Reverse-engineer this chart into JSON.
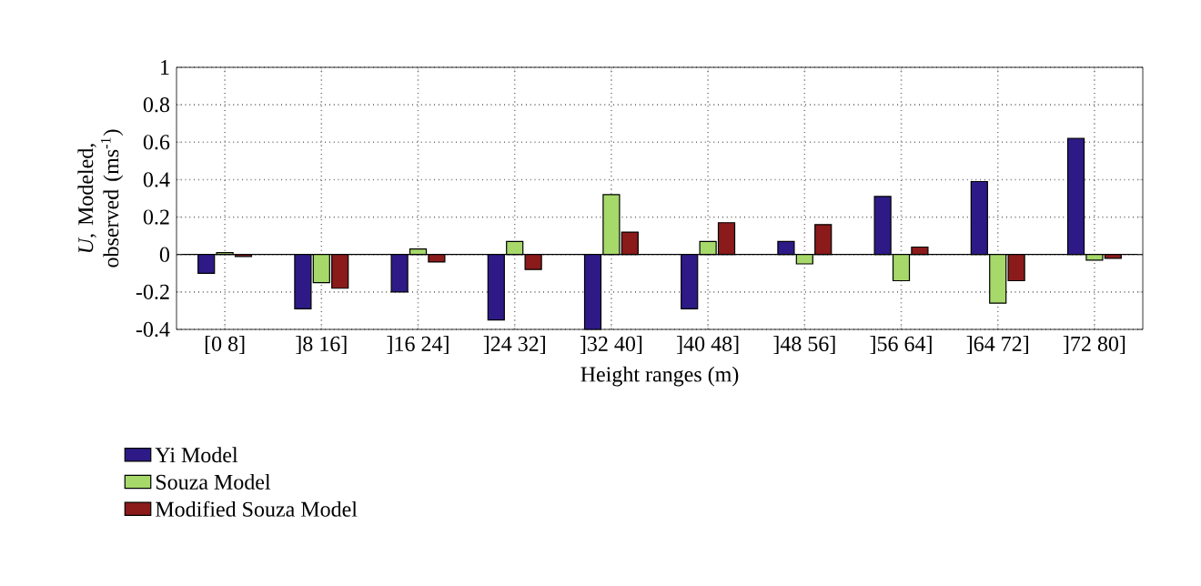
{
  "chart_data": {
    "type": "bar",
    "xlabel": "Height ranges (m)",
    "ylabel": "*U*, Modeled, observed (ms$^{-1}$)",
    "categories": [
      "[0 8]",
      "]8 16]",
      "]16 24]",
      "]24 32]",
      "]32 40]",
      "]40 48]",
      "]48 56]",
      "]56 64]",
      "]64 72]",
      "]72 80]"
    ],
    "series": [
      {
        "name": "Yi Model",
        "color": "#2e1a87",
        "values": [
          -0.1,
          -0.29,
          -0.2,
          -0.35,
          -0.4,
          -0.29,
          0.07,
          0.31,
          0.39,
          0.62
        ]
      },
      {
        "name": "Souza Model",
        "color": "#a6d96a",
        "values": [
          0.01,
          -0.15,
          0.03,
          0.07,
          0.32,
          0.07,
          -0.05,
          -0.14,
          -0.26,
          -0.03
        ]
      },
      {
        "name": "Modified Souza Model",
        "color": "#8b1a1a",
        "values": [
          -0.01,
          -0.18,
          -0.04,
          -0.08,
          0.12,
          0.17,
          0.16,
          0.04,
          -0.14,
          -0.02
        ]
      }
    ],
    "ylim": [
      -0.4,
      1
    ],
    "yticks": [
      -0.4,
      -0.2,
      0,
      0.2,
      0.4,
      0.6,
      0.8,
      1
    ],
    "grid": true,
    "legend": "bottom left"
  }
}
